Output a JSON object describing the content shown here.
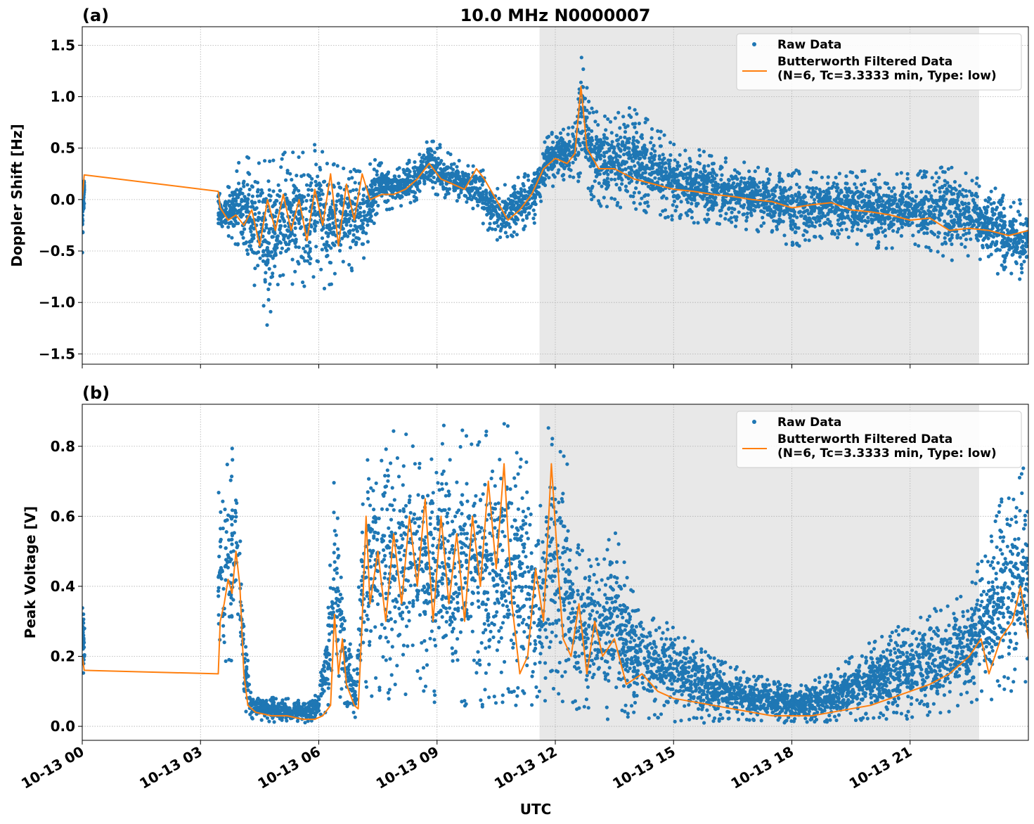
{
  "chart_data": [
    {
      "type": "line",
      "panel_label": "(a)",
      "title": "10.0 MHz N0000007",
      "ylabel": "Doppler Shift [Hz]",
      "xlabel": "",
      "xlim_hours": [
        0,
        24
      ],
      "ylim": [
        -1.6,
        1.68
      ],
      "yticks": [
        -1.5,
        -1.0,
        -0.5,
        0.0,
        0.5,
        1.0,
        1.5
      ],
      "ytick_labels": [
        "−1.5",
        "−1.0",
        "−0.5",
        "0.0",
        "0.5",
        "1.0",
        "1.5"
      ],
      "grid": true,
      "legend_position": "top-right",
      "shaded_region_hours": [
        11.6,
        22.75
      ],
      "series": [
        {
          "name": "Raw Data",
          "style": "scatter",
          "color": "#1f77b4",
          "envelope_hours": [
            0,
            0.05,
            3.45,
            3.6,
            4.0,
            4.5,
            4.7,
            5.0,
            5.4,
            5.8,
            6.0,
            6.2,
            6.6,
            7.0,
            7.5,
            8.0,
            8.5,
            8.8,
            9.3,
            9.8,
            10.2,
            10.5,
            11.0,
            11.5,
            11.8,
            12.2,
            12.5,
            12.65,
            12.9,
            13.3,
            14.0,
            15.0,
            16.0,
            17.0,
            18.0,
            19.0,
            20.0,
            21.0,
            22.0,
            22.75,
            23.5,
            24.0
          ],
          "envelope_low": [
            -0.65,
            -0.1,
            -0.35,
            -0.3,
            -0.5,
            -1.0,
            -1.3,
            -0.8,
            -0.85,
            -0.95,
            -0.6,
            -1.0,
            -0.6,
            -0.8,
            -0.1,
            -0.1,
            0.0,
            0.05,
            -0.05,
            -0.05,
            -0.25,
            -0.4,
            -0.35,
            -0.25,
            0.1,
            0.15,
            0.1,
            0.2,
            0.0,
            -0.1,
            -0.1,
            -0.2,
            -0.25,
            -0.3,
            -0.5,
            -0.35,
            -0.5,
            -0.45,
            -0.6,
            -0.6,
            -0.85,
            -0.8
          ],
          "envelope_high": [
            0.35,
            0.3,
            0.1,
            0.05,
            0.4,
            0.45,
            0.4,
            0.45,
            0.5,
            0.5,
            0.6,
            0.45,
            0.3,
            0.35,
            0.4,
            0.3,
            0.45,
            0.65,
            0.45,
            0.35,
            0.3,
            0.1,
            0.2,
            0.4,
            0.65,
            0.7,
            0.85,
            1.53,
            0.9,
            0.85,
            0.9,
            0.55,
            0.45,
            0.35,
            0.3,
            0.25,
            0.3,
            0.25,
            0.35,
            0.2,
            0.05,
            0.0
          ]
        },
        {
          "name": "Butterworth Filtered Data\n(N=6, Tc=3.3333 min, Type: low)",
          "style": "line",
          "color": "#ff7f0e",
          "x_hours": [
            0,
            0.05,
            3.45,
            3.5,
            3.7,
            3.9,
            4.1,
            4.3,
            4.5,
            4.7,
            4.9,
            5.1,
            5.3,
            5.5,
            5.7,
            5.9,
            6.1,
            6.3,
            6.5,
            6.7,
            6.9,
            7.1,
            7.3,
            7.6,
            7.9,
            8.2,
            8.5,
            8.8,
            9.1,
            9.4,
            9.7,
            10.0,
            10.2,
            10.5,
            10.8,
            11.1,
            11.4,
            11.7,
            12.0,
            12.3,
            12.5,
            12.65,
            12.8,
            13.1,
            13.5,
            14.0,
            14.5,
            15.0,
            15.5,
            16.0,
            16.5,
            17.0,
            17.5,
            18.0,
            18.5,
            19.0,
            19.5,
            20.0,
            20.5,
            21.0,
            21.5,
            22.0,
            22.5,
            23.0,
            23.5,
            24.0
          ],
          "y": [
            0.0,
            0.24,
            0.08,
            -0.08,
            -0.2,
            -0.15,
            -0.25,
            -0.1,
            -0.45,
            0.0,
            -0.3,
            0.05,
            -0.3,
            0.0,
            -0.4,
            0.1,
            -0.25,
            0.25,
            -0.45,
            0.15,
            -0.2,
            0.25,
            0.0,
            0.05,
            0.05,
            0.1,
            0.2,
            0.35,
            0.2,
            0.15,
            0.1,
            0.3,
            0.2,
            0.0,
            -0.2,
            -0.1,
            0.05,
            0.3,
            0.4,
            0.35,
            0.45,
            1.1,
            0.5,
            0.3,
            0.3,
            0.2,
            0.15,
            0.1,
            0.08,
            0.05,
            0.03,
            0.0,
            -0.02,
            -0.08,
            -0.05,
            -0.03,
            -0.1,
            -0.12,
            -0.15,
            -0.2,
            -0.18,
            -0.3,
            -0.28,
            -0.3,
            -0.35,
            -0.3
          ]
        }
      ]
    },
    {
      "type": "line",
      "panel_label": "(b)",
      "title": "",
      "ylabel": "Peak Voltage [V]",
      "xlabel": "UTC",
      "xlim_hours": [
        0,
        24
      ],
      "ylim": [
        -0.04,
        0.92
      ],
      "yticks": [
        0.0,
        0.2,
        0.4,
        0.6,
        0.8
      ],
      "ytick_labels": [
        "0.0",
        "0.2",
        "0.4",
        "0.6",
        "0.8"
      ],
      "xticks_hours": [
        0,
        3,
        6,
        9,
        12,
        15,
        18,
        21
      ],
      "xtick_labels": [
        "10-13 00",
        "10-13 03",
        "10-13 06",
        "10-13 09",
        "10-13 12",
        "10-13 15",
        "10-13 18",
        "10-13 21"
      ],
      "grid": true,
      "legend_position": "top-right",
      "shaded_region_hours": [
        11.6,
        22.75
      ],
      "series": [
        {
          "name": "Raw Data",
          "style": "scatter",
          "color": "#1f77b4",
          "envelope_hours": [
            0,
            0.05,
            3.45,
            3.6,
            3.9,
            4.1,
            4.3,
            5.0,
            5.8,
            6.0,
            6.25,
            6.4,
            6.7,
            6.95,
            7.1,
            7.3,
            8.0,
            9.0,
            10.0,
            10.8,
            11.2,
            11.5,
            11.8,
            12.2,
            12.5,
            13.0,
            13.4,
            14.0,
            15.0,
            16.0,
            17.0,
            18.0,
            19.0,
            20.0,
            21.0,
            21.8,
            22.5,
            23.0,
            23.5,
            24.0
          ],
          "envelope_low": [
            0.1,
            0.1,
            0.1,
            0.15,
            0.2,
            0.05,
            0.02,
            0.01,
            0.01,
            0.01,
            0.05,
            0.1,
            0.05,
            0.02,
            0.1,
            0.05,
            0.05,
            0.05,
            0.05,
            0.05,
            0.05,
            0.05,
            0.05,
            0.05,
            0.03,
            0.02,
            0.02,
            0.02,
            0.01,
            0.01,
            0.01,
            0.01,
            0.01,
            0.02,
            0.02,
            0.02,
            0.05,
            0.05,
            0.1,
            0.1
          ],
          "envelope_high": [
            0.5,
            0.3,
            0.7,
            0.75,
            0.85,
            0.3,
            0.1,
            0.08,
            0.08,
            0.1,
            0.4,
            0.75,
            0.3,
            0.15,
            0.75,
            0.83,
            0.85,
            0.87,
            0.85,
            0.88,
            0.8,
            0.6,
            0.87,
            0.85,
            0.55,
            0.5,
            0.6,
            0.4,
            0.3,
            0.2,
            0.15,
            0.12,
            0.15,
            0.25,
            0.3,
            0.35,
            0.4,
            0.55,
            0.75,
            0.75
          ]
        },
        {
          "name": "Butterworth Filtered Data\n(N=6, Tc=3.3333 min, Type: low)",
          "style": "line",
          "color": "#ff7f0e",
          "x_hours": [
            0,
            0.05,
            3.45,
            3.5,
            3.6,
            3.7,
            3.8,
            3.9,
            4.0,
            4.1,
            4.2,
            4.4,
            4.8,
            5.2,
            5.6,
            5.9,
            6.1,
            6.3,
            6.4,
            6.5,
            6.6,
            6.7,
            6.9,
            7.0,
            7.1,
            7.2,
            7.3,
            7.5,
            7.7,
            7.9,
            8.1,
            8.3,
            8.5,
            8.7,
            8.9,
            9.1,
            9.3,
            9.5,
            9.7,
            9.9,
            10.1,
            10.3,
            10.5,
            10.7,
            10.9,
            11.1,
            11.3,
            11.5,
            11.7,
            11.9,
            12.1,
            12.2,
            12.4,
            12.6,
            12.8,
            13.0,
            13.2,
            13.5,
            13.8,
            14.2,
            14.6,
            15.0,
            15.5,
            16.0,
            16.5,
            17.0,
            17.5,
            18.0,
            18.5,
            19.0,
            19.5,
            20.0,
            20.5,
            21.0,
            21.5,
            22.0,
            22.5,
            22.8,
            23.0,
            23.3,
            23.6,
            23.8,
            24.0
          ],
          "y": [
            0.2,
            0.16,
            0.15,
            0.3,
            0.35,
            0.42,
            0.38,
            0.5,
            0.4,
            0.15,
            0.06,
            0.04,
            0.03,
            0.03,
            0.02,
            0.02,
            0.03,
            0.06,
            0.32,
            0.15,
            0.25,
            0.12,
            0.06,
            0.05,
            0.3,
            0.6,
            0.35,
            0.5,
            0.3,
            0.55,
            0.35,
            0.6,
            0.4,
            0.65,
            0.3,
            0.6,
            0.35,
            0.55,
            0.3,
            0.6,
            0.4,
            0.7,
            0.45,
            0.75,
            0.35,
            0.15,
            0.2,
            0.45,
            0.3,
            0.75,
            0.4,
            0.25,
            0.2,
            0.35,
            0.15,
            0.3,
            0.2,
            0.25,
            0.12,
            0.15,
            0.1,
            0.08,
            0.07,
            0.06,
            0.05,
            0.04,
            0.03,
            0.03,
            0.03,
            0.04,
            0.05,
            0.06,
            0.08,
            0.1,
            0.12,
            0.15,
            0.2,
            0.25,
            0.15,
            0.25,
            0.3,
            0.4,
            0.25
          ]
        }
      ]
    }
  ]
}
